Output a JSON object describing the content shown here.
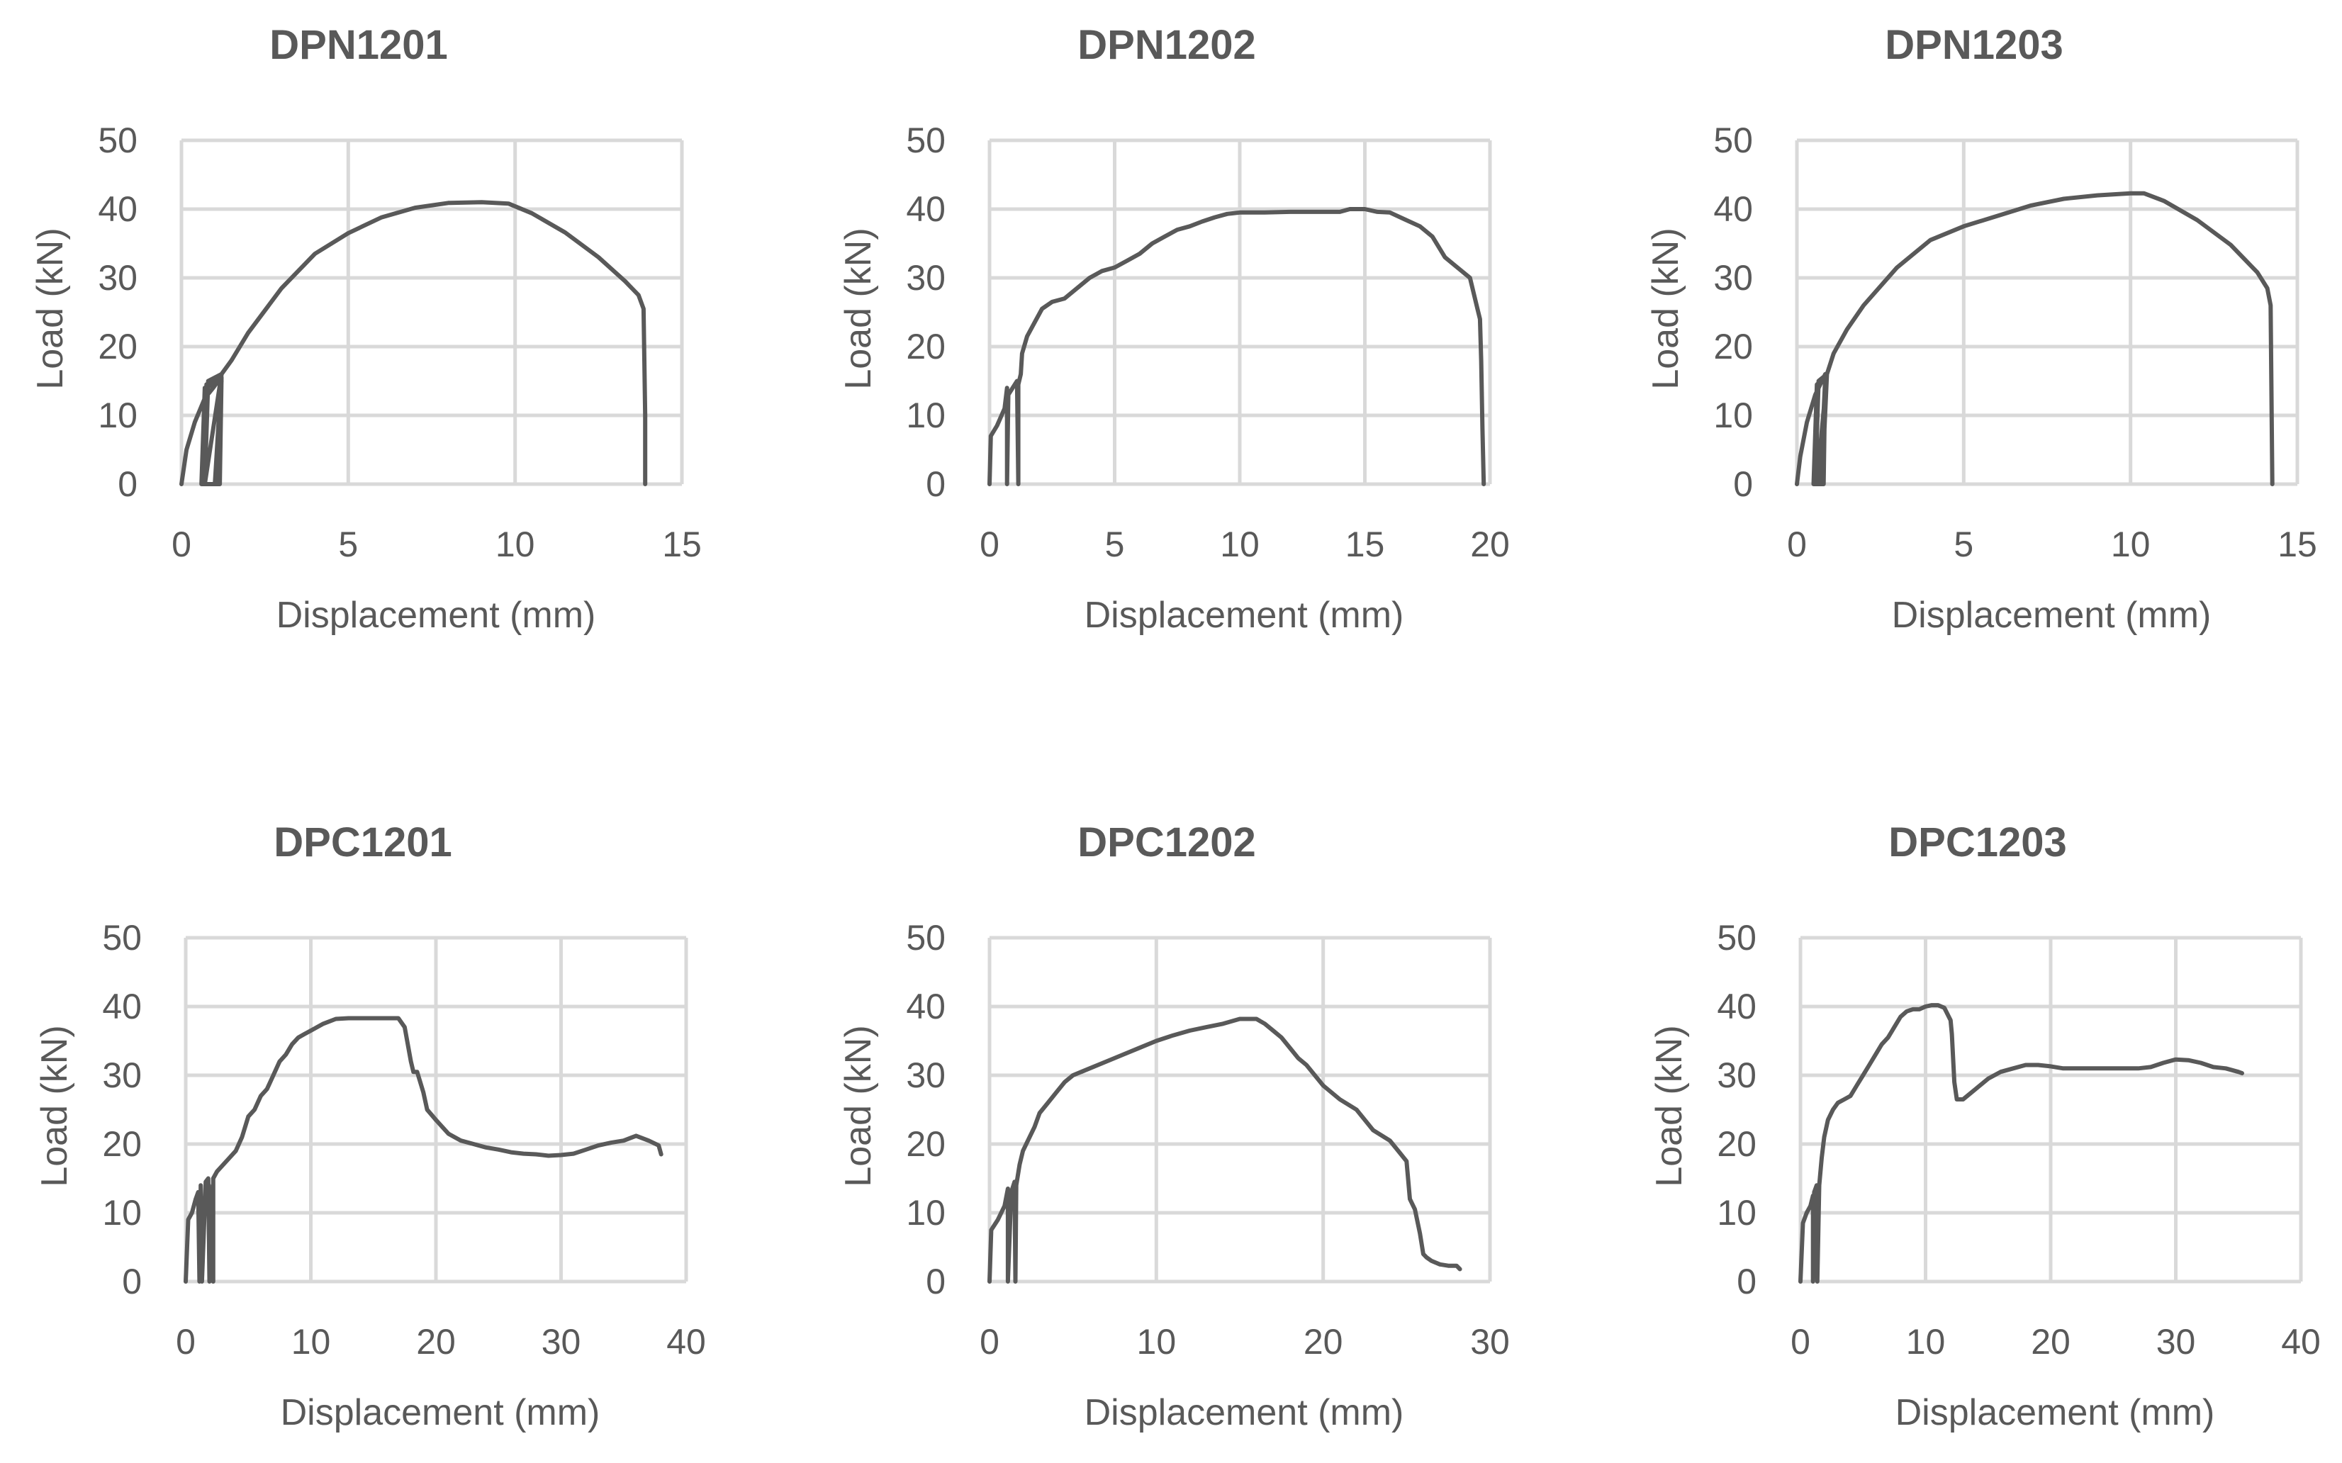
{
  "chart_data": [
    {
      "type": "line",
      "title": "DPN1201",
      "xlabel": "Displacement (mm)",
      "ylabel": "Load (kN)",
      "xlim": [
        0,
        15
      ],
      "ylim": [
        0,
        50
      ],
      "xticks": [
        0,
        5,
        10,
        15
      ],
      "yticks": [
        0,
        10,
        20,
        30,
        40,
        50
      ],
      "grid": true,
      "series": [
        {
          "name": "DPN1201",
          "x": [
            0,
            0.15,
            0.4,
            0.7,
            0.95,
            1.1,
            1.2,
            1.15,
            0.6,
            0.7,
            1.2,
            1.05,
            0.65,
            0.75,
            1.2,
            1.0,
            0.7,
            0.8,
            1.2,
            1.0,
            0.7,
            1.2,
            1.5,
            2.0,
            3.0,
            4.0,
            5.0,
            6.0,
            7.0,
            8.0,
            9.0,
            9.8,
            10.5,
            11.5,
            12.5,
            13.3,
            13.7,
            13.85,
            13.9,
            13.9
          ],
          "y": [
            0,
            5,
            9,
            12.5,
            14,
            15,
            15.5,
            0,
            0,
            14,
            15,
            0,
            0,
            14.5,
            15.5,
            0,
            0,
            15,
            16,
            0,
            0,
            16,
            18,
            22,
            28.5,
            33.5,
            36.5,
            38.8,
            40.2,
            40.9,
            41.0,
            40.8,
            39.4,
            36.6,
            33.0,
            29.5,
            27.5,
            25.5,
            10,
            0
          ]
        }
      ]
    },
    {
      "type": "line",
      "title": "DPN1202",
      "xlabel": "Displacement (mm)",
      "ylabel": "Load (kN)",
      "xlim": [
        0,
        20
      ],
      "ylim": [
        0,
        50
      ],
      "xticks": [
        0,
        5,
        10,
        15,
        20
      ],
      "yticks": [
        0,
        10,
        20,
        30,
        40,
        50
      ],
      "grid": true,
      "series": [
        {
          "name": "DPN1202",
          "x": [
            0,
            0.05,
            0.3,
            0.6,
            0.7,
            0.7,
            0.75,
            1.1,
            1.15,
            1.15,
            1.25,
            1.3,
            1.5,
            1.8,
            2.1,
            2.5,
            3.0,
            3.5,
            4.0,
            4.5,
            5.0,
            5.5,
            6.0,
            6.5,
            7.0,
            7.5,
            8.0,
            8.5,
            9.0,
            9.5,
            10.0,
            11.0,
            12.0,
            13.0,
            14.0,
            14.4,
            15.0,
            15.5,
            16.0,
            16.6,
            17.2,
            17.7,
            18.2,
            18.7,
            19.2,
            19.5,
            19.6,
            19.65,
            19.7,
            19.75
          ],
          "y": [
            0,
            7,
            8.5,
            11,
            14,
            0,
            13,
            15,
            0,
            14.5,
            16,
            19,
            21.5,
            23.5,
            25.5,
            26.5,
            27,
            28.5,
            30,
            31,
            31.5,
            32.5,
            33.5,
            35,
            36,
            37,
            37.5,
            38.2,
            38.8,
            39.3,
            39.5,
            39.5,
            39.6,
            39.6,
            39.6,
            40,
            40,
            39.6,
            39.5,
            38.5,
            37.5,
            36,
            33,
            31.5,
            30,
            25.5,
            24,
            18,
            8,
            0
          ]
        }
      ]
    },
    {
      "type": "line",
      "title": "DPN1203",
      "xlabel": "Displacement (mm)",
      "ylabel": "Load (kN)",
      "xlim": [
        0,
        15
      ],
      "ylim": [
        0,
        50
      ],
      "xticks": [
        0,
        5,
        10,
        15
      ],
      "yticks": [
        0,
        10,
        20,
        30,
        40,
        50
      ],
      "grid": true,
      "series": [
        {
          "name": "DPN1203",
          "x": [
            0,
            0.1,
            0.3,
            0.55,
            0.75,
            0.85,
            0.8,
            0.5,
            0.6,
            0.85,
            0.7,
            0.55,
            0.65,
            0.9,
            0.75,
            0.6,
            0.9,
            1.1,
            1.5,
            2.0,
            3.0,
            4.0,
            5.0,
            6.0,
            7.0,
            8.0,
            9.0,
            10.0,
            10.4,
            11.0,
            12.0,
            13.0,
            13.8,
            14.1,
            14.2,
            14.25
          ],
          "y": [
            0,
            4,
            9,
            13,
            15,
            16,
            0,
            0,
            14.5,
            15.5,
            0,
            0,
            15,
            16,
            0,
            0,
            16,
            19,
            22.5,
            26,
            31.5,
            35.5,
            37.5,
            39,
            40.5,
            41.5,
            42,
            42.3,
            42.3,
            41.2,
            38.4,
            34.8,
            30.8,
            28.5,
            26,
            0
          ]
        }
      ]
    },
    {
      "type": "line",
      "title": "DPC1201",
      "xlabel": "Displacement (mm)",
      "ylabel": "Load (kN)",
      "xlim": [
        0,
        40
      ],
      "ylim": [
        0,
        50
      ],
      "xticks": [
        0,
        10,
        20,
        30,
        40
      ],
      "yticks": [
        0,
        10,
        20,
        30,
        40,
        50
      ],
      "grid": true,
      "series": [
        {
          "name": "DPC1201",
          "x": [
            0,
            0.2,
            0.5,
            0.8,
            1.0,
            1.1,
            1.2,
            1.3,
            1.6,
            1.8,
            1.9,
            1.85,
            2.2,
            2.2,
            2.5,
            3.0,
            3.5,
            4.0,
            4.5,
            5.0,
            5.5,
            6.0,
            6.5,
            7.0,
            7.5,
            8.0,
            8.5,
            9.0,
            9.5,
            10.0,
            11.0,
            12.0,
            13.0,
            14.0,
            15.0,
            16.0,
            17.0,
            17.5,
            18.0,
            18.2,
            18.5,
            19.0,
            19.3,
            20.0,
            21.0,
            22.0,
            23.0,
            24.0,
            25.0,
            26.0,
            27.0,
            28.0,
            29.0,
            30.0,
            31.0,
            32.0,
            33.0,
            34.0,
            35.0,
            36.0,
            37.0,
            37.8,
            38.0
          ],
          "y": [
            0,
            9,
            10,
            12,
            13,
            0,
            14,
            0,
            14.5,
            15,
            0,
            14,
            0,
            15,
            16,
            17,
            18,
            19,
            21,
            24,
            25,
            27,
            28,
            30,
            32,
            33,
            34.5,
            35.5,
            36,
            36.5,
            37.5,
            38.2,
            38.3,
            38.3,
            38.3,
            38.3,
            38.3,
            37,
            32,
            30.5,
            30.5,
            27.5,
            25,
            23.5,
            21.5,
            20.5,
            20,
            19.5,
            19.2,
            18.8,
            18.6,
            18.5,
            18.3,
            18.4,
            18.6,
            19.2,
            19.8,
            20.2,
            20.5,
            21.2,
            20.5,
            19.8,
            18.5
          ]
        }
      ]
    },
    {
      "type": "line",
      "title": "DPC1202",
      "xlabel": "Displacement (mm)",
      "ylabel": "Load (kN)",
      "xlim": [
        0,
        30
      ],
      "ylim": [
        0,
        50
      ],
      "xticks": [
        0,
        10,
        20,
        30
      ],
      "yticks": [
        0,
        10,
        20,
        30,
        40,
        50
      ],
      "grid": true,
      "series": [
        {
          "name": "DPC1202",
          "x": [
            0,
            0.1,
            0.5,
            0.9,
            1.1,
            1.1,
            1.3,
            1.5,
            1.55,
            1.6,
            1.8,
            2.0,
            2.3,
            2.7,
            3.0,
            3.5,
            4.0,
            4.5,
            5.0,
            5.5,
            6.0,
            7.0,
            8.0,
            9.0,
            10.0,
            11.0,
            12.0,
            13.0,
            14.0,
            15.0,
            16.0,
            16.5,
            17.0,
            17.5,
            18.0,
            18.5,
            19.0,
            19.5,
            20.0,
            21.0,
            22.0,
            23.0,
            24.0,
            24.5,
            25.0,
            25.2,
            25.5,
            25.8,
            26.0,
            26.2,
            26.5,
            27.0,
            27.5,
            28.0,
            28.2
          ],
          "y": [
            0,
            7.5,
            9,
            11,
            13.5,
            0,
            13,
            14.5,
            0,
            14,
            17,
            19,
            20.5,
            22.5,
            24.5,
            26,
            27.5,
            29,
            30,
            30.5,
            31,
            32,
            33,
            34,
            35,
            35.8,
            36.5,
            37,
            37.5,
            38.2,
            38.2,
            37.5,
            36.5,
            35.5,
            34,
            32.5,
            31.5,
            30,
            28.5,
            26.5,
            25,
            22,
            20.5,
            19,
            17.5,
            12,
            10.5,
            7,
            4,
            3.5,
            3,
            2.5,
            2.3,
            2.3,
            1.8
          ]
        }
      ]
    },
    {
      "type": "line",
      "title": "DPC1203",
      "xlabel": "Displacement (mm)",
      "ylabel": "Load (kN)",
      "xlim": [
        0,
        40
      ],
      "ylim": [
        0,
        50
      ],
      "xticks": [
        0,
        10,
        20,
        30,
        40
      ],
      "yticks": [
        0,
        10,
        20,
        30,
        40,
        50
      ],
      "grid": true,
      "series": [
        {
          "name": "DPC1203",
          "x": [
            0,
            0.2,
            0.5,
            0.8,
            1.0,
            1.0,
            1.1,
            1.3,
            1.35,
            1.5,
            1.7,
            1.9,
            2.2,
            2.6,
            3.0,
            3.5,
            4.0,
            4.5,
            5.0,
            5.5,
            6.0,
            6.5,
            7.0,
            7.5,
            8.0,
            8.5,
            9.0,
            9.5,
            10.0,
            10.5,
            11.0,
            11.5,
            12.0,
            12.1,
            12.3,
            12.5,
            13.0,
            14.0,
            15.0,
            16.0,
            17.0,
            18.0,
            19.0,
            20.0,
            21.0,
            22.0,
            23.0,
            24.0,
            25.0,
            26.0,
            27.0,
            28.0,
            29.0,
            30.0,
            31.0,
            32.0,
            33.0,
            34.0,
            35.0,
            35.3
          ],
          "y": [
            0,
            8.5,
            10,
            11,
            12.5,
            0,
            13,
            14,
            0,
            14,
            18,
            21,
            23.5,
            25,
            26,
            26.5,
            27,
            28.5,
            30,
            31.5,
            33,
            34.5,
            35.5,
            37,
            38.5,
            39.3,
            39.6,
            39.6,
            40,
            40.2,
            40.2,
            39.8,
            38,
            36,
            29,
            26.5,
            26.5,
            28,
            29.5,
            30.5,
            31,
            31.5,
            31.5,
            31.3,
            31,
            31,
            31,
            31,
            31,
            31,
            31,
            31.2,
            31.8,
            32.3,
            32.2,
            31.8,
            31.2,
            31,
            30.5,
            30.3
          ]
        }
      ]
    }
  ]
}
